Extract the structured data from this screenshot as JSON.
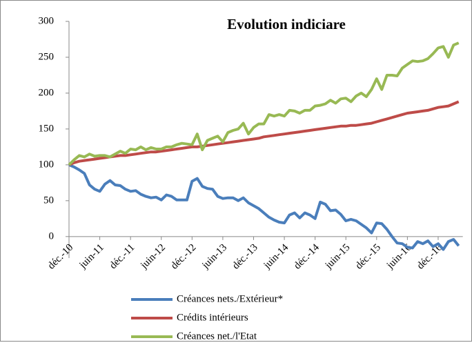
{
  "chart_data": {
    "type": "line",
    "title": "Evolution indiciare",
    "categories": [
      "déc.-10",
      null,
      null,
      null,
      null,
      null,
      "juin-11",
      null,
      null,
      null,
      null,
      null,
      "déc.-11",
      null,
      null,
      null,
      null,
      null,
      "juin-12",
      null,
      null,
      null,
      null,
      null,
      "déc.-12",
      null,
      null,
      null,
      null,
      null,
      "juin-13",
      null,
      null,
      null,
      null,
      null,
      "déc.-13",
      null,
      null,
      null,
      null,
      null,
      "juin-14",
      null,
      null,
      null,
      null,
      null,
      "déc.-14",
      null,
      null,
      null,
      null,
      null,
      "juin-15",
      null,
      null,
      null,
      null,
      null,
      "déc.-15",
      null,
      null,
      null,
      null,
      null,
      "juin-16",
      null,
      null,
      null,
      null,
      null,
      "déc.-16",
      null,
      null,
      null,
      null
    ],
    "series": [
      {
        "name": "Créances nets./Extérieur*",
        "color": "#4a7ebb",
        "values": [
          100,
          97,
          93,
          88,
          72,
          66,
          63,
          73,
          78,
          72,
          71,
          66,
          63,
          64,
          59,
          56,
          54,
          55,
          51,
          58,
          56,
          51,
          51,
          51,
          77,
          81,
          70,
          67,
          66,
          56,
          53,
          54,
          54,
          50,
          54,
          47,
          43,
          39,
          33,
          27,
          23,
          20,
          19,
          30,
          33,
          26,
          33,
          30,
          25,
          48,
          45,
          36,
          37,
          31,
          22,
          24,
          22,
          17,
          12,
          5,
          19,
          18,
          10,
          0,
          -9,
          -10,
          -15,
          -16,
          -7,
          -10,
          -6,
          -14,
          -10,
          -18,
          -7,
          -4,
          -13
        ]
      },
      {
        "name": "Crédits intérieurs",
        "color": "#be4b48",
        "values": [
          100,
          103,
          105,
          106,
          107,
          108,
          109,
          110,
          111,
          112,
          113,
          113,
          114,
          115,
          116,
          117,
          118,
          118,
          119,
          120,
          121,
          122,
          123,
          124,
          125,
          125,
          126,
          127,
          128,
          129,
          130,
          131,
          132,
          133,
          134,
          135,
          136,
          137,
          139,
          140,
          141,
          142,
          143,
          144,
          145,
          146,
          147,
          148,
          149,
          150,
          151,
          152,
          153,
          154,
          154,
          155,
          155,
          156,
          157,
          158,
          160,
          162,
          164,
          166,
          168,
          170,
          172,
          173,
          174,
          175,
          176,
          178,
          180,
          181,
          182,
          185,
          188
        ]
      },
      {
        "name": "Créances net./l'Etat",
        "color": "#98b954",
        "values": [
          100,
          107,
          113,
          111,
          115,
          112,
          113,
          113,
          111,
          115,
          119,
          116,
          122,
          121,
          125,
          121,
          124,
          122,
          122,
          125,
          125,
          128,
          130,
          129,
          128,
          143,
          121,
          134,
          137,
          140,
          132,
          145,
          148,
          150,
          158,
          143,
          152,
          157,
          157,
          170,
          168,
          170,
          168,
          176,
          175,
          172,
          176,
          176,
          182,
          183,
          185,
          190,
          186,
          192,
          193,
          188,
          196,
          200,
          195,
          205,
          220,
          205,
          225,
          225,
          224,
          235,
          240,
          245,
          244,
          245,
          248,
          255,
          263,
          265,
          250,
          267,
          270
        ]
      }
    ],
    "ylim": [
      -30,
      300
    ],
    "yticks": [
      0,
      50,
      100,
      150,
      200,
      250,
      300
    ],
    "grid": false
  }
}
